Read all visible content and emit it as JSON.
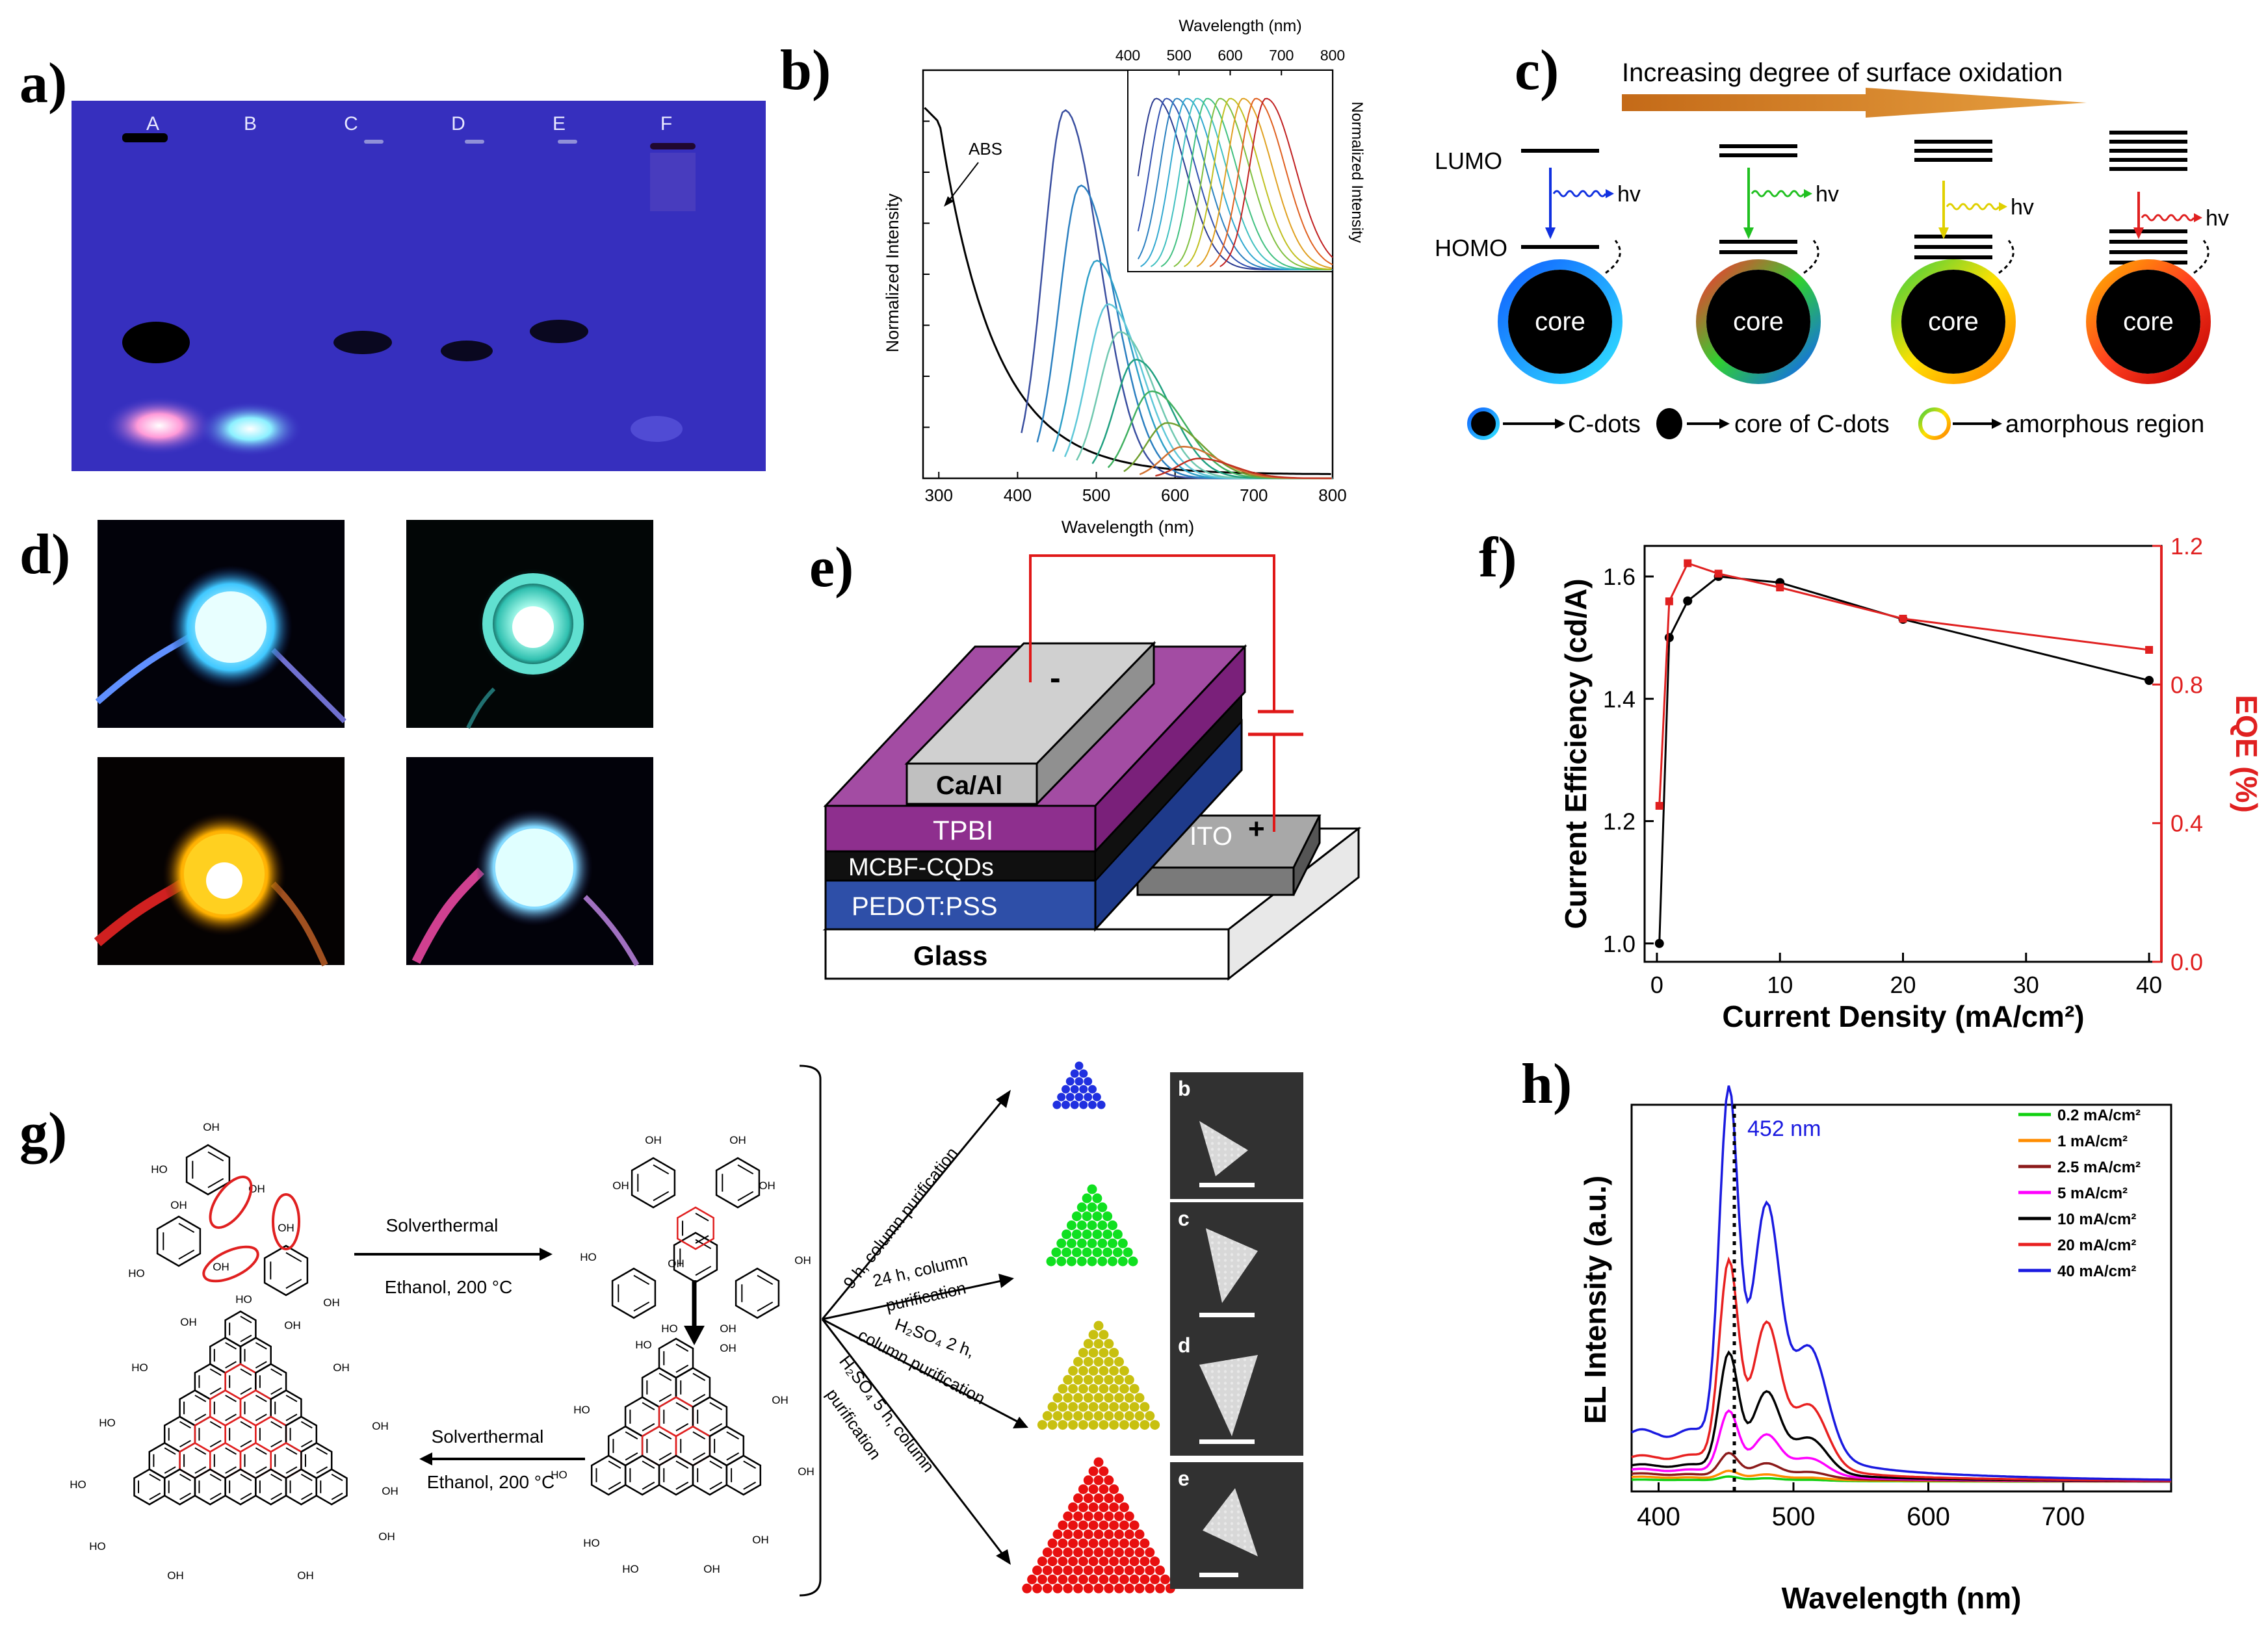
{
  "panels": {
    "a": {
      "label": "a)",
      "lanes": [
        "A",
        "B",
        "C",
        "D",
        "E",
        "F"
      ]
    },
    "b": {
      "label": "b)",
      "xlabel": "Wavelength (nm)",
      "ylabel": "Normalized Intensity",
      "abs_label": "ABS",
      "xticks": [
        "300",
        "400",
        "500",
        "600",
        "700",
        "800"
      ],
      "inset_xlabel": "Wavelength (nm)",
      "inset_ylabel": "Normalized Intensity",
      "inset_xticks": [
        "400",
        "500",
        "600",
        "700",
        "800"
      ]
    },
    "c": {
      "label": "c)",
      "title": "Increasing degree of surface oxidation",
      "lumo": "LUMO",
      "homo": "HOMO",
      "core": "core",
      "hv": "hv",
      "legend": {
        "cdots": "C-dots",
        "core": "core of C-dots",
        "amorphous": "amorphous region"
      }
    },
    "d": {
      "label": "d)"
    },
    "e": {
      "label": "e)",
      "layers": {
        "cathode": "Ca/Al",
        "tpbi": "TPBI",
        "cqds": "MCBF-CQDs",
        "pedot": "PEDOT:PSS",
        "glass": "Glass",
        "ito": "ITO"
      },
      "minus": "-",
      "plus": "+"
    },
    "f": {
      "label": "f)",
      "xlabel": "Current Density (mA/cm²)",
      "ylabel_left": "Current Efficiency (cd/A)",
      "ylabel_right": "EQE (%)",
      "xticks": [
        "0",
        "10",
        "20",
        "30",
        "40"
      ],
      "yticks_left": [
        "1.0",
        "1.2",
        "1.4",
        "1.6"
      ],
      "yticks_right": [
        "0.0",
        "0.4",
        "0.8",
        "1.2"
      ]
    },
    "g": {
      "label": "g)",
      "step1_top": "Solverthermal",
      "step1_bottom": "Ethanol, 200 °C",
      "step2_top": "Solverthermal",
      "step2_bottom": "Ethanol, 200 °C",
      "route1": "9 h, column purification",
      "route2a": "24 h, column",
      "route2b": "purification",
      "route3a": "H₂SO₄ 2 h,",
      "route3b": "column purification",
      "route4a": "H₂SO₄ 5 h, column",
      "route4b": "purification",
      "oh": "OH",
      "ho": "HO",
      "tem": [
        "b",
        "c",
        "d",
        "e"
      ]
    },
    "h": {
      "label": "h)",
      "peak": "452 nm",
      "xlabel": "Wavelength (nm)",
      "ylabel": "EL Intensity (a.u.)",
      "xticks": [
        "400",
        "500",
        "600",
        "700"
      ],
      "legend": [
        "0.2 mA/cm²",
        "1    mA/cm²",
        "2.5 mA/cm²",
        "5    mA/cm²",
        "10  mA/cm²",
        "20  mA/cm²",
        "40  mA/cm²"
      ]
    }
  },
  "chart_data": [
    {
      "type": "line",
      "panel": "f",
      "title": "",
      "xlabel": "Current Density (mA/cm²)",
      "xlim": [
        -1,
        41
      ],
      "series": [
        {
          "name": "Current Efficiency (cd/A)",
          "color": "#000000",
          "axis": "left",
          "ylim": [
            0.97,
            1.65
          ],
          "x": [
            0.2,
            1,
            2.5,
            5,
            10,
            20,
            40
          ],
          "y": [
            1.0,
            1.5,
            1.56,
            1.6,
            1.59,
            1.53,
            1.43
          ]
        },
        {
          "name": "EQE (%)",
          "color": "#e02020",
          "axis": "right",
          "ylim": [
            0.0,
            1.2
          ],
          "x": [
            0.2,
            1,
            2.5,
            5,
            10,
            20,
            40
          ],
          "y": [
            0.45,
            1.04,
            1.15,
            1.12,
            1.08,
            0.99,
            0.9
          ]
        }
      ]
    },
    {
      "type": "line",
      "panel": "h",
      "title": "",
      "xlabel": "Wavelength (nm)",
      "ylabel": "EL Intensity (a.u.)",
      "xlim": [
        380,
        780
      ],
      "series": [
        {
          "name": "0.2 mA/cm²",
          "color": "#10d010",
          "peak1": 0.01,
          "peak2": 0.006,
          "base": 0.005
        },
        {
          "name": "1 mA/cm²",
          "color": "#ff8c00",
          "peak1": 0.02,
          "peak2": 0.012,
          "base": 0.012
        },
        {
          "name": "2.5 mA/cm²",
          "color": "#8b1a1a",
          "peak1": 0.06,
          "peak2": 0.035,
          "base": 0.02
        },
        {
          "name": "5 mA/cm²",
          "color": "#ff00ff",
          "peak1": 0.16,
          "peak2": 0.1,
          "base": 0.03
        },
        {
          "name": "10 mA/cm²",
          "color": "#000000",
          "peak1": 0.3,
          "peak2": 0.2,
          "base": 0.04
        },
        {
          "name": "20 mA/cm²",
          "color": "#e82020",
          "peak1": 0.52,
          "peak2": 0.36,
          "base": 0.06
        },
        {
          "name": "40 mA/cm²",
          "color": "#1a1ae0",
          "peak1": 0.92,
          "peak2": 0.62,
          "base": 0.12
        }
      ]
    },
    {
      "type": "line",
      "panel": "b",
      "title": "",
      "xlabel": "Wavelength (nm)",
      "ylabel": "Normalized Intensity",
      "xlim": [
        280,
        800
      ],
      "excitation_peaks": [
        460,
        480,
        500,
        515,
        530,
        550,
        570,
        590,
        610,
        630
      ],
      "inset_peaks": [
        455,
        475,
        495,
        515,
        535,
        555,
        580,
        600,
        625,
        650,
        670
      ]
    }
  ],
  "colors": {
    "gel_bg": "#3a35c8",
    "purple": "#8e2f8e",
    "black_layer": "#101010",
    "pedot": "#2e4fa8",
    "ito": "#7a7a7a",
    "arrow": "#c9701a"
  }
}
